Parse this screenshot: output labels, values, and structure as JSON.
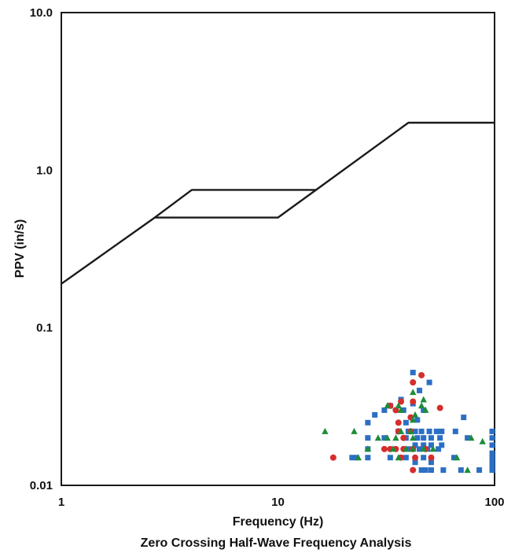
{
  "chart_data": {
    "type": "scatter",
    "title": "",
    "subtitle": "Zero Crossing Half-Wave Frequency Analysis",
    "xlabel": "Frequency (Hz)",
    "ylabel": "PPV (in/s)",
    "xscale": "log",
    "yscale": "log",
    "xlim": [
      1,
      100
    ],
    "ylim": [
      0.01,
      10
    ],
    "x_ticks": [
      {
        "value": 1,
        "label": "1"
      },
      {
        "value": 10,
        "label": "10"
      },
      {
        "value": 100,
        "label": "100"
      }
    ],
    "y_ticks": [
      {
        "value": 0.01,
        "label": "0.01"
      },
      {
        "value": 0.1,
        "label": "0.1"
      },
      {
        "value": 1,
        "label": "1.0"
      },
      {
        "value": 10,
        "label": "10.0"
      }
    ],
    "grid": false,
    "legend": "none",
    "limit_lines": [
      {
        "color": "#1a1a1a",
        "points": [
          [
            1,
            0.19
          ],
          [
            2.7,
            0.5
          ],
          [
            4,
            0.75
          ],
          [
            15,
            0.75
          ],
          [
            40,
            2.0
          ],
          [
            100,
            2.0
          ]
        ]
      },
      {
        "color": "#1a1a1a",
        "points": [
          [
            2.7,
            0.5
          ],
          [
            10,
            0.5
          ],
          [
            15,
            0.75
          ]
        ]
      }
    ],
    "series": [
      {
        "marker": "square",
        "color": "#2b6fc4",
        "points": [
          [
            42,
            0.052
          ],
          [
            50,
            0.045
          ],
          [
            45,
            0.04
          ],
          [
            37,
            0.035
          ],
          [
            42,
            0.033
          ],
          [
            33,
            0.032
          ],
          [
            47,
            0.03
          ],
          [
            38,
            0.03
          ],
          [
            31,
            0.03
          ],
          [
            28,
            0.028
          ],
          [
            72,
            0.027
          ],
          [
            44,
            0.026
          ],
          [
            26,
            0.025
          ],
          [
            39,
            0.025
          ],
          [
            46,
            0.022
          ],
          [
            50,
            0.022
          ],
          [
            54,
            0.022
          ],
          [
            57,
            0.022
          ],
          [
            66,
            0.022
          ],
          [
            100,
            0.022
          ],
          [
            36,
            0.022
          ],
          [
            40,
            0.022
          ],
          [
            43,
            0.022
          ],
          [
            26,
            0.02
          ],
          [
            31,
            0.02
          ],
          [
            39,
            0.02
          ],
          [
            44,
            0.02
          ],
          [
            47,
            0.02
          ],
          [
            51,
            0.02
          ],
          [
            56,
            0.02
          ],
          [
            75,
            0.02
          ],
          [
            100,
            0.02
          ],
          [
            43,
            0.018
          ],
          [
            47,
            0.018
          ],
          [
            51,
            0.018
          ],
          [
            57,
            0.018
          ],
          [
            100,
            0.018
          ],
          [
            26,
            0.017
          ],
          [
            40,
            0.017
          ],
          [
            45,
            0.017
          ],
          [
            49,
            0.017
          ],
          [
            55,
            0.017
          ],
          [
            100,
            0.016
          ],
          [
            22,
            0.015
          ],
          [
            26,
            0.015
          ],
          [
            33,
            0.015
          ],
          [
            39,
            0.015
          ],
          [
            47,
            0.015
          ],
          [
            65,
            0.015
          ],
          [
            100,
            0.015
          ],
          [
            23,
            0.015
          ],
          [
            43,
            0.014
          ],
          [
            100,
            0.014
          ],
          [
            51,
            0.014
          ],
          [
            100,
            0.013
          ],
          [
            46,
            0.0125
          ],
          [
            48,
            0.0125
          ],
          [
            51,
            0.0125
          ],
          [
            58,
            0.0125
          ],
          [
            70,
            0.0125
          ],
          [
            85,
            0.0125
          ],
          [
            100,
            0.0125
          ]
        ]
      },
      {
        "marker": "circle",
        "color": "#d62d2d",
        "points": [
          [
            46,
            0.05
          ],
          [
            42,
            0.045
          ],
          [
            37,
            0.034
          ],
          [
            33,
            0.032
          ],
          [
            42,
            0.034
          ],
          [
            56,
            0.031
          ],
          [
            35,
            0.03
          ],
          [
            41,
            0.027
          ],
          [
            36,
            0.025
          ],
          [
            36,
            0.022
          ],
          [
            41,
            0.022
          ],
          [
            38,
            0.02
          ],
          [
            31,
            0.017
          ],
          [
            33,
            0.017
          ],
          [
            35,
            0.017
          ],
          [
            38,
            0.017
          ],
          [
            42,
            0.017
          ],
          [
            48,
            0.017
          ],
          [
            18,
            0.015
          ],
          [
            37,
            0.015
          ],
          [
            43,
            0.015
          ],
          [
            51,
            0.015
          ],
          [
            42,
            0.0125
          ]
        ]
      },
      {
        "marker": "triangle",
        "color": "#1e8c3a",
        "points": [
          [
            42,
            0.039
          ],
          [
            47,
            0.035
          ],
          [
            46,
            0.032
          ],
          [
            36,
            0.032
          ],
          [
            32,
            0.032
          ],
          [
            37,
            0.03
          ],
          [
            48,
            0.03
          ],
          [
            43,
            0.028
          ],
          [
            42,
            0.026
          ],
          [
            16.5,
            0.022
          ],
          [
            22.5,
            0.022
          ],
          [
            37,
            0.022
          ],
          [
            41,
            0.022
          ],
          [
            29,
            0.02
          ],
          [
            32,
            0.02
          ],
          [
            35,
            0.02
          ],
          [
            42,
            0.02
          ],
          [
            78,
            0.02
          ],
          [
            26,
            0.017
          ],
          [
            34,
            0.017
          ],
          [
            39,
            0.017
          ],
          [
            42,
            0.017
          ],
          [
            47,
            0.017
          ],
          [
            52,
            0.017
          ],
          [
            88,
            0.019
          ],
          [
            23.5,
            0.015
          ],
          [
            36,
            0.015
          ],
          [
            67,
            0.015
          ],
          [
            75,
            0.0125
          ]
        ]
      }
    ]
  }
}
